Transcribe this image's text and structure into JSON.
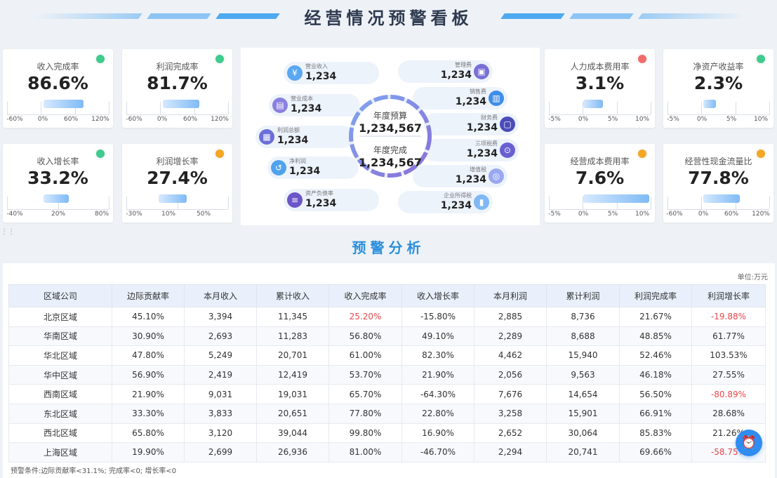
{
  "header": {
    "title": "经营情况预警看板"
  },
  "kpis": [
    {
      "label": "收入完成率",
      "value": "86.6%",
      "status": "green",
      "ticks": [
        "-60%",
        "0%",
        "60%",
        "120%"
      ]
    },
    {
      "label": "利润完成率",
      "value": "81.7%",
      "status": "green",
      "ticks": [
        "-60%",
        "0%",
        "60%",
        "120%"
      ]
    },
    {
      "label": "收入增长率",
      "value": "33.2%",
      "status": "green",
      "ticks": [
        "-40%",
        "20%",
        "80%"
      ]
    },
    {
      "label": "利润增长率",
      "value": "27.4%",
      "status": "orange",
      "ticks": [
        "-30%",
        "10%",
        "50%"
      ]
    },
    {
      "label": "人力成本费用率",
      "value": "3.1%",
      "status": "red",
      "ticks": [
        "-5%",
        "0%",
        "5%",
        "10%"
      ]
    },
    {
      "label": "净资产收益率",
      "value": "2.3%",
      "status": "green",
      "ticks": [
        "-5%",
        "0%",
        "5%",
        "10%"
      ]
    },
    {
      "label": "经营成本费用率",
      "value": "7.6%",
      "status": "orange",
      "ticks": [
        "-5%",
        "0%",
        "5%",
        "10%"
      ]
    },
    {
      "label": "经营性现金流量比",
      "value": "77.8%",
      "status": "orange",
      "ticks": [
        "-60%",
        "0%",
        "60%",
        "120%"
      ]
    }
  ],
  "center": {
    "budget_label": "年度预算",
    "budget_value": "1,234,567",
    "done_label": "年度完成",
    "done_value": "1,234,567",
    "left_items": [
      {
        "label": "营业收入",
        "value": "1,234"
      },
      {
        "label": "营业成本",
        "value": "1,234"
      },
      {
        "label": "利润总额",
        "value": "1,234"
      },
      {
        "label": "净利润",
        "value": "1,234"
      },
      {
        "label": "资产负债率",
        "value": "1,234"
      }
    ],
    "right_items": [
      {
        "label": "管理费",
        "value": "1,234"
      },
      {
        "label": "销售费",
        "value": "1,234"
      },
      {
        "label": "财务费",
        "value": "1,234"
      },
      {
        "label": "三项税费",
        "value": "1,234"
      },
      {
        "label": "增值税",
        "value": "1,234"
      },
      {
        "label": "企业所得税",
        "value": "1,234"
      }
    ]
  },
  "analysis": {
    "title": "预警分析",
    "unit": "单位:万元",
    "columns": [
      "区域公司",
      "边际贡献率",
      "本月收入",
      "累计收入",
      "收入完成率",
      "收入增长率",
      "本月利润",
      "累计利润",
      "利润完成率",
      "利润增长率"
    ],
    "rows": [
      [
        "北京区域",
        "45.10%",
        "3,394",
        "11,345",
        "25.20%",
        "-15.80%",
        "2,885",
        "8,736",
        "21.67%",
        "-19.88%"
      ],
      [
        "华南区域",
        "30.90%",
        "2,693",
        "11,283",
        "56.80%",
        "49.10%",
        "2,289",
        "8,688",
        "48.85%",
        "61.77%"
      ],
      [
        "华北区域",
        "47.80%",
        "5,249",
        "20,701",
        "61.00%",
        "82.30%",
        "4,462",
        "15,940",
        "52.46%",
        "103.53%"
      ],
      [
        "华中区域",
        "56.90%",
        "2,419",
        "12,419",
        "53.70%",
        "21.90%",
        "2,056",
        "9,563",
        "46.18%",
        "27.55%"
      ],
      [
        "西南区域",
        "21.90%",
        "9,031",
        "19,031",
        "65.70%",
        "-64.30%",
        "7,676",
        "14,654",
        "56.50%",
        "-80.89%"
      ],
      [
        "东北区域",
        "33.30%",
        "3,833",
        "20,651",
        "77.80%",
        "22.80%",
        "3,258",
        "15,901",
        "66.91%",
        "28.68%"
      ],
      [
        "西北区域",
        "65.80%",
        "3,120",
        "39,044",
        "99.80%",
        "16.90%",
        "2,652",
        "30,064",
        "85.83%",
        "21.26%"
      ],
      [
        "上海区域",
        "19.90%",
        "2,699",
        "26,936",
        "81.00%",
        "-46.70%",
        "2,294",
        "20,741",
        "69.66%",
        "-58.75%"
      ]
    ],
    "negative_cells": [
      [
        0,
        4
      ],
      [
        0,
        9
      ],
      [
        4,
        9
      ],
      [
        7,
        9
      ]
    ],
    "note": "预警条件:边际贡献率<31.1%; 完成率<0; 增长率<0"
  },
  "colors": {
    "accent": "#2f8cf0",
    "green": "#3ecb8e",
    "red": "#f16b6b",
    "orange": "#f5a623",
    "negative": "#e8474c"
  }
}
